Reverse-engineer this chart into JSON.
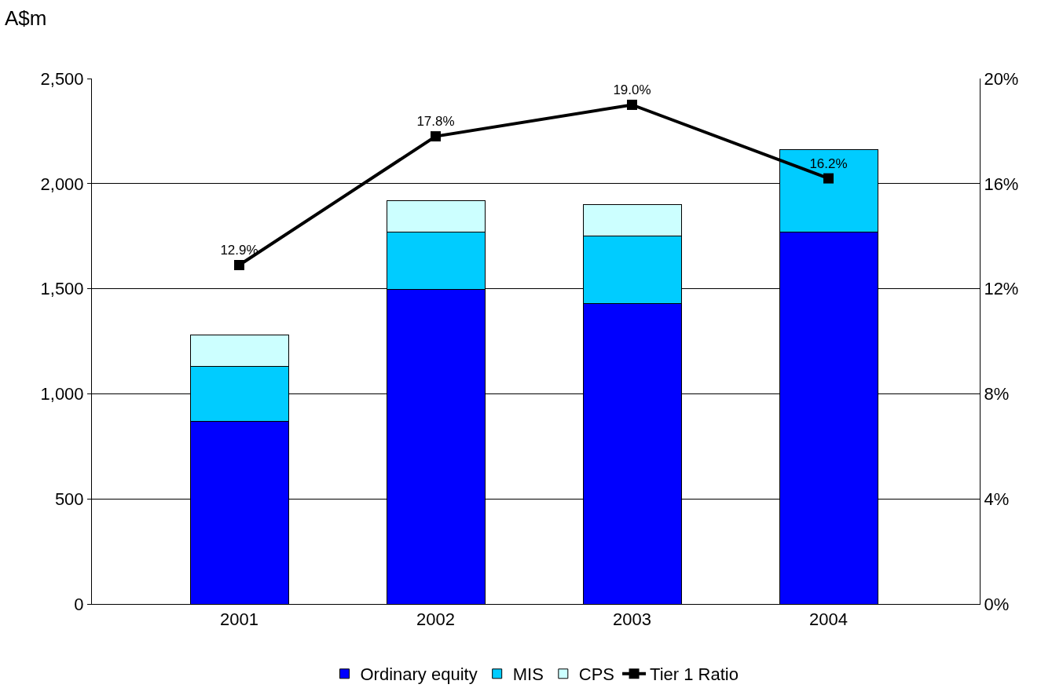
{
  "chart_data": {
    "type": "bar",
    "stacked": true,
    "ylabel": "A$m",
    "categories": [
      "2001",
      "2002",
      "2003",
      "2004"
    ],
    "series": [
      {
        "name": "Ordinary equity",
        "color": "#0000ff",
        "values": [
          870,
          1495,
          1430,
          1770
        ]
      },
      {
        "name": "MIS",
        "color": "#00ccff",
        "values": [
          260,
          275,
          320,
          390
        ]
      },
      {
        "name": "CPS",
        "color": "#ccffff",
        "values": [
          150,
          150,
          150,
          null
        ]
      },
      {
        "name": "Tier 1 Ratio",
        "type": "line",
        "axis": "y2",
        "color": "#000000",
        "marker": "square",
        "values": [
          12.9,
          17.8,
          19.0,
          16.2
        ],
        "value_labels": [
          "12.9%",
          "17.8%",
          "19.0%",
          "16.2%"
        ]
      }
    ],
    "ylim": [
      0,
      2500
    ],
    "yticks": [
      {
        "value": 0,
        "label": "0"
      },
      {
        "value": 500,
        "label": "500"
      },
      {
        "value": 1000,
        "label": "1,000"
      },
      {
        "value": 1500,
        "label": "1,500"
      },
      {
        "value": 2000,
        "label": "2,000"
      },
      {
        "value": 2500,
        "label": "2,500"
      }
    ],
    "y2lim": [
      0,
      20
    ],
    "y2ticks": [
      {
        "value": 0,
        "label": "0%"
      },
      {
        "value": 4,
        "label": "4%"
      },
      {
        "value": 8,
        "label": "8%"
      },
      {
        "value": 12,
        "label": "12%"
      },
      {
        "value": 16,
        "label": "16%"
      },
      {
        "value": 20,
        "label": "20%"
      }
    ],
    "grid": "y",
    "legend": "bottom"
  }
}
